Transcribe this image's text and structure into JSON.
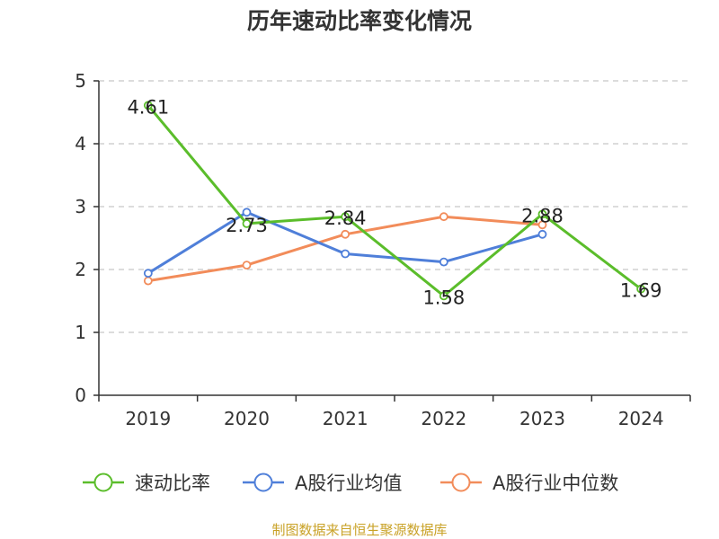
{
  "chart_data": {
    "type": "line",
    "title": "历年速动比率变化情况",
    "categories": [
      "2019",
      "2020",
      "2021",
      "2022",
      "2023",
      "2024"
    ],
    "ylim": [
      0,
      5
    ],
    "yticks": [
      "0",
      "1",
      "2",
      "3",
      "4",
      "5"
    ],
    "series": [
      {
        "name": "速动比率",
        "color": "#5bbd2b",
        "values": [
          4.61,
          2.73,
          2.84,
          1.58,
          2.88,
          1.69
        ],
        "labels": [
          "4.61",
          "2.73",
          "2.84",
          "1.58",
          "2.88",
          "1.69"
        ]
      },
      {
        "name": "A股行业均值",
        "color": "#4f7fd9",
        "values": [
          1.94,
          2.91,
          2.25,
          2.12,
          2.56,
          null
        ]
      },
      {
        "name": "A股行业中位数",
        "color": "#f28c5a",
        "values": [
          1.82,
          2.07,
          2.56,
          2.84,
          2.71,
          null
        ]
      }
    ],
    "legend_position": "bottom",
    "grid": true,
    "source": "制图数据来自恒生聚源数据库"
  }
}
